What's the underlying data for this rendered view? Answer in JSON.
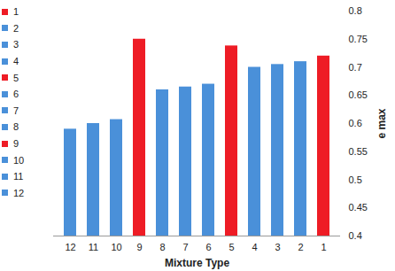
{
  "chart_data": {
    "type": "bar",
    "x_label": "Mixture Type",
    "y_label": "e max",
    "categories": [
      "12",
      "11",
      "10",
      "9",
      "8",
      "7",
      "6",
      "5",
      "4",
      "3",
      "2",
      "1"
    ],
    "values": [
      0.59,
      0.6,
      0.607,
      0.75,
      0.66,
      0.665,
      0.67,
      0.738,
      0.7,
      0.705,
      0.71,
      0.72
    ],
    "colors": [
      "#4a90d9",
      "#4a90d9",
      "#4a90d9",
      "#ee1c25",
      "#4a90d9",
      "#4a90d9",
      "#4a90d9",
      "#ee1c25",
      "#4a90d9",
      "#4a90d9",
      "#4a90d9",
      "#ee1c25"
    ],
    "ylim": [
      0.4,
      0.8
    ],
    "yticks": [
      0.4,
      0.45,
      0.5,
      0.55,
      0.6,
      0.65,
      0.7,
      0.75,
      0.8
    ],
    "grid": false,
    "legend": "left"
  }
}
